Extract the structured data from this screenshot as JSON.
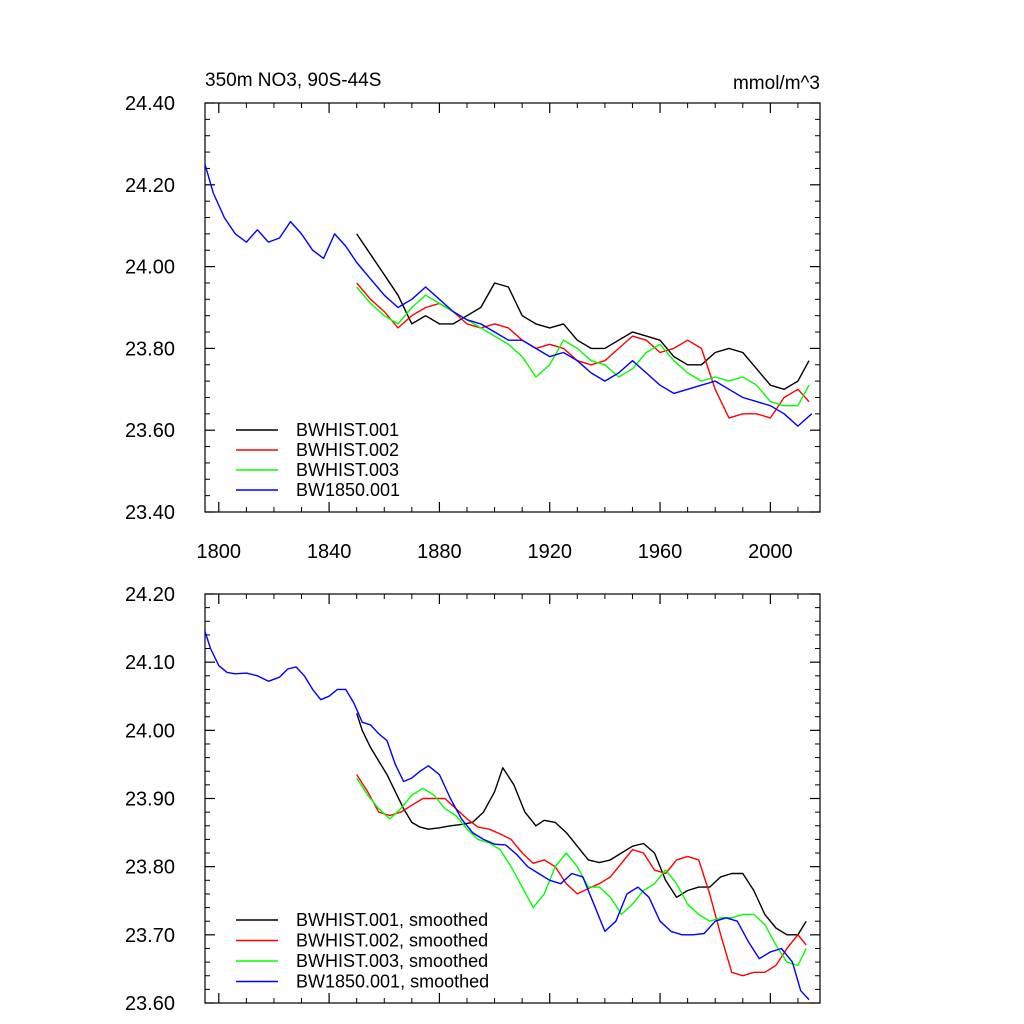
{
  "chart_data": [
    {
      "type": "line",
      "title": "350m NO3, 90S-44S",
      "units": "mmol/m^3",
      "xlim": [
        1795,
        2018
      ],
      "ylim": [
        23.4,
        24.4
      ],
      "xticks": [
        1800,
        1840,
        1880,
        1920,
        1960,
        2000
      ],
      "xtick_labels": [
        "1800",
        "1840",
        "1880",
        "1920",
        "1960",
        "2000"
      ],
      "yticks": [
        23.4,
        23.6,
        23.8,
        24.0,
        24.2,
        24.4
      ],
      "ytick_labels": [
        "23.40",
        "23.60",
        "23.80",
        "24.00",
        "24.20",
        "24.40"
      ],
      "legend_position": "bottom-left",
      "series": [
        {
          "name": "BWHIST.001",
          "color": "#000000",
          "x": [
            1850,
            1855,
            1860,
            1865,
            1870,
            1875,
            1880,
            1885,
            1890,
            1895,
            1900,
            1905,
            1910,
            1915,
            1920,
            1925,
            1930,
            1935,
            1940,
            1945,
            1950,
            1955,
            1960,
            1965,
            1970,
            1975,
            1980,
            1985,
            1990,
            1995,
            2000,
            2005,
            2010,
            2014
          ],
          "y": [
            24.08,
            24.03,
            23.98,
            23.93,
            23.86,
            23.88,
            23.86,
            23.86,
            23.88,
            23.9,
            23.96,
            23.95,
            23.88,
            23.86,
            23.85,
            23.86,
            23.82,
            23.8,
            23.8,
            23.82,
            23.84,
            23.83,
            23.82,
            23.78,
            23.76,
            23.76,
            23.79,
            23.8,
            23.79,
            23.75,
            23.71,
            23.7,
            23.72,
            23.77
          ]
        },
        {
          "name": "BWHIST.002",
          "color": "#ff0000",
          "x": [
            1850,
            1855,
            1860,
            1865,
            1870,
            1875,
            1880,
            1885,
            1890,
            1895,
            1900,
            1905,
            1910,
            1915,
            1920,
            1925,
            1930,
            1935,
            1940,
            1945,
            1950,
            1955,
            1960,
            1965,
            1970,
            1975,
            1980,
            1985,
            1990,
            1995,
            2000,
            2005,
            2010,
            2014
          ],
          "y": [
            23.96,
            23.92,
            23.89,
            23.85,
            23.88,
            23.9,
            23.91,
            23.89,
            23.86,
            23.85,
            23.86,
            23.85,
            23.82,
            23.8,
            23.81,
            23.8,
            23.77,
            23.76,
            23.77,
            23.8,
            23.83,
            23.82,
            23.79,
            23.8,
            23.82,
            23.8,
            23.7,
            23.63,
            23.64,
            23.64,
            23.63,
            23.68,
            23.7,
            23.67
          ]
        },
        {
          "name": "BWHIST.003",
          "color": "#00ff00",
          "x": [
            1850,
            1855,
            1860,
            1865,
            1870,
            1875,
            1880,
            1885,
            1890,
            1895,
            1900,
            1905,
            1910,
            1915,
            1920,
            1925,
            1930,
            1935,
            1940,
            1945,
            1950,
            1955,
            1960,
            1965,
            1970,
            1975,
            1980,
            1985,
            1990,
            1995,
            2000,
            2005,
            2010,
            2014
          ],
          "y": [
            23.95,
            23.91,
            23.88,
            23.86,
            23.9,
            23.93,
            23.91,
            23.89,
            23.87,
            23.85,
            23.83,
            23.81,
            23.78,
            23.73,
            23.76,
            23.82,
            23.8,
            23.77,
            23.76,
            23.73,
            23.75,
            23.79,
            23.81,
            23.77,
            23.74,
            23.72,
            23.73,
            23.72,
            23.73,
            23.71,
            23.67,
            23.66,
            23.66,
            23.71
          ]
        },
        {
          "name": "BW1850.001",
          "color": "#0000ff",
          "x": [
            1795,
            1798,
            1802,
            1806,
            1810,
            1814,
            1818,
            1822,
            1826,
            1830,
            1834,
            1838,
            1842,
            1846,
            1850,
            1855,
            1860,
            1865,
            1870,
            1875,
            1880,
            1885,
            1890,
            1895,
            1900,
            1905,
            1910,
            1915,
            1920,
            1925,
            1930,
            1935,
            1940,
            1945,
            1950,
            1955,
            1960,
            1965,
            1970,
            1975,
            1980,
            1985,
            1990,
            1995,
            2000,
            2005,
            2010,
            2015
          ],
          "y": [
            24.25,
            24.18,
            24.12,
            24.08,
            24.06,
            24.09,
            24.06,
            24.07,
            24.11,
            24.08,
            24.04,
            24.02,
            24.08,
            24.05,
            24.01,
            23.97,
            23.93,
            23.9,
            23.92,
            23.95,
            23.92,
            23.89,
            23.87,
            23.86,
            23.84,
            23.82,
            23.82,
            23.8,
            23.78,
            23.79,
            23.77,
            23.74,
            23.72,
            23.74,
            23.77,
            23.74,
            23.71,
            23.69,
            23.7,
            23.71,
            23.72,
            23.7,
            23.68,
            23.67,
            23.66,
            23.64,
            23.61,
            23.64
          ]
        }
      ]
    },
    {
      "type": "line",
      "title": "",
      "xlim": [
        1795,
        2018
      ],
      "ylim": [
        23.6,
        24.2
      ],
      "xticks": [
        1800,
        1840,
        1880,
        1920,
        1960,
        2000
      ],
      "yticks": [
        23.6,
        23.7,
        23.8,
        23.9,
        24.0,
        24.1,
        24.2
      ],
      "ytick_labels": [
        "23.60",
        "23.70",
        "23.80",
        "23.90",
        "24.00",
        "24.10",
        "24.20"
      ],
      "legend_position": "bottom-left",
      "series": [
        {
          "name": "BWHIST.001, smoothed",
          "color": "#000000",
          "x": [
            1850,
            1852,
            1855,
            1858,
            1861,
            1864,
            1867,
            1870,
            1873,
            1876,
            1880,
            1884,
            1888,
            1892,
            1896,
            1900,
            1903,
            1907,
            1911,
            1915,
            1918,
            1922,
            1926,
            1930,
            1934,
            1938,
            1942,
            1946,
            1950,
            1954,
            1958,
            1962,
            1966,
            1970,
            1974,
            1978,
            1982,
            1986,
            1990,
            1994,
            1998,
            2002,
            2006,
            2010,
            2013
          ],
          "y": [
            24.025,
            24.0,
            23.975,
            23.955,
            23.935,
            23.91,
            23.885,
            23.865,
            23.858,
            23.855,
            23.857,
            23.86,
            23.862,
            23.865,
            23.88,
            23.91,
            23.945,
            23.92,
            23.88,
            23.86,
            23.868,
            23.865,
            23.85,
            23.83,
            23.81,
            23.806,
            23.81,
            23.82,
            23.83,
            23.834,
            23.82,
            23.78,
            23.755,
            23.765,
            23.77,
            23.77,
            23.785,
            23.79,
            23.79,
            23.765,
            23.73,
            23.71,
            23.7,
            23.7,
            23.72
          ]
        },
        {
          "name": "BWHIST.002, smoothed",
          "color": "#ff0000",
          "x": [
            1850,
            1854,
            1858,
            1862,
            1866,
            1870,
            1874,
            1878,
            1882,
            1886,
            1890,
            1894,
            1898,
            1902,
            1906,
            1910,
            1914,
            1918,
            1922,
            1926,
            1930,
            1934,
            1938,
            1942,
            1946,
            1950,
            1954,
            1958,
            1962,
            1966,
            1970,
            1974,
            1978,
            1982,
            1986,
            1990,
            1994,
            1998,
            2002,
            2006,
            2010,
            2013
          ],
          "y": [
            23.935,
            23.91,
            23.88,
            23.875,
            23.88,
            23.89,
            23.9,
            23.9,
            23.9,
            23.885,
            23.87,
            23.858,
            23.855,
            23.848,
            23.84,
            23.82,
            23.805,
            23.81,
            23.8,
            23.775,
            23.76,
            23.768,
            23.775,
            23.785,
            23.805,
            23.825,
            23.82,
            23.795,
            23.79,
            23.81,
            23.815,
            23.81,
            23.76,
            23.7,
            23.645,
            23.64,
            23.645,
            23.645,
            23.655,
            23.68,
            23.7,
            23.685
          ]
        },
        {
          "name": "BWHIST.003, smoothed",
          "color": "#00ff00",
          "x": [
            1850,
            1854,
            1858,
            1862,
            1866,
            1870,
            1874,
            1878,
            1882,
            1886,
            1890,
            1894,
            1898,
            1902,
            1906,
            1910,
            1914,
            1918,
            1922,
            1926,
            1930,
            1934,
            1938,
            1942,
            1946,
            1950,
            1954,
            1958,
            1962,
            1966,
            1970,
            1974,
            1978,
            1982,
            1986,
            1990,
            1994,
            1998,
            2002,
            2006,
            2010,
            2013
          ],
          "y": [
            23.93,
            23.905,
            23.885,
            23.87,
            23.885,
            23.905,
            23.915,
            23.905,
            23.885,
            23.875,
            23.855,
            23.84,
            23.835,
            23.825,
            23.8,
            23.77,
            23.74,
            23.76,
            23.8,
            23.82,
            23.8,
            23.77,
            23.77,
            23.755,
            23.73,
            23.745,
            23.765,
            23.775,
            23.795,
            23.775,
            23.745,
            23.73,
            23.72,
            23.725,
            23.725,
            23.73,
            23.73,
            23.715,
            23.685,
            23.66,
            23.655,
            23.68
          ]
        },
        {
          "name": "BW1850.001, smoothed",
          "color": "#0000ff",
          "x": [
            1795,
            1797,
            1800,
            1803,
            1806,
            1810,
            1814,
            1818,
            1822,
            1825,
            1828,
            1831,
            1834,
            1837,
            1840,
            1843,
            1846,
            1849,
            1852,
            1855,
            1858,
            1861,
            1864,
            1867,
            1870,
            1873,
            1876,
            1880,
            1884,
            1888,
            1892,
            1896,
            1900,
            1904,
            1908,
            1912,
            1916,
            1920,
            1924,
            1928,
            1932,
            1936,
            1940,
            1944,
            1948,
            1952,
            1956,
            1960,
            1964,
            1968,
            1972,
            1976,
            1980,
            1984,
            1988,
            1992,
            1996,
            2000,
            2004,
            2008,
            2011,
            2014
          ],
          "y": [
            24.145,
            24.12,
            24.095,
            24.085,
            24.083,
            24.084,
            24.08,
            24.072,
            24.078,
            24.09,
            24.093,
            24.08,
            24.06,
            24.045,
            24.05,
            24.06,
            24.06,
            24.04,
            24.012,
            24.008,
            23.995,
            23.985,
            23.95,
            23.925,
            23.93,
            23.94,
            23.948,
            23.935,
            23.9,
            23.87,
            23.85,
            23.84,
            23.833,
            23.832,
            23.818,
            23.8,
            23.79,
            23.78,
            23.775,
            23.79,
            23.785,
            23.745,
            23.705,
            23.72,
            23.76,
            23.77,
            23.755,
            23.72,
            23.705,
            23.7,
            23.7,
            23.702,
            23.72,
            23.725,
            23.72,
            23.69,
            23.665,
            23.675,
            23.68,
            23.66,
            23.618,
            23.605
          ]
        }
      ]
    }
  ]
}
